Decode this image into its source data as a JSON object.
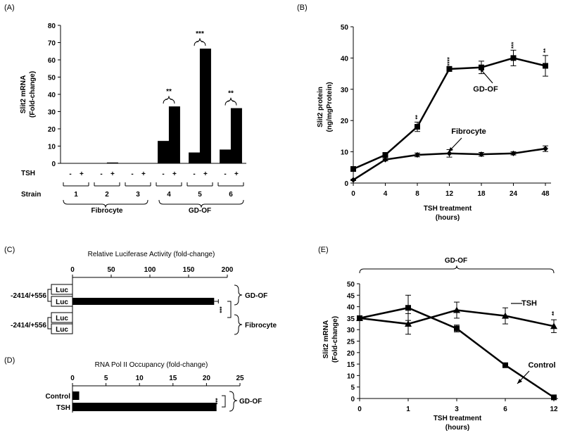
{
  "chart_data": [
    {
      "panel": "(A)",
      "type": "bar",
      "ylabel_line1": "Slit2 mRNA",
      "ylabel_line2": "(Fold-change)",
      "ylim": [
        0,
        80
      ],
      "yticks": [
        "0",
        "10",
        "20",
        "30",
        "40",
        "50",
        "60",
        "70",
        "80"
      ],
      "row_labels": {
        "tsh": "TSH",
        "strain": "Strain"
      },
      "signs": [
        "-",
        "+"
      ],
      "strains": [
        "1",
        "2",
        "3",
        "4",
        "5",
        "6"
      ],
      "values_minus": [
        0,
        0,
        0,
        13,
        6.3,
        8
      ],
      "values_plus": [
        0,
        0.5,
        0,
        33,
        66.5,
        32
      ],
      "significance": [
        {
          "strain": "4",
          "text": "**"
        },
        {
          "strain": "5",
          "text": "***"
        },
        {
          "strain": "6",
          "text": "**"
        }
      ],
      "groups": [
        "Fibrocyte",
        "GD-OF"
      ]
    },
    {
      "panel": "(B)",
      "type": "line",
      "ylabel_line1": "Slit2 protein",
      "ylabel_line2": "(ng/mgProtein)",
      "xlabel_line1": "TSH treatment",
      "xlabel_line2": "(hours)",
      "x": [
        "0",
        "4",
        "8",
        "12",
        "18",
        "24",
        "48"
      ],
      "ylim": [
        0,
        50
      ],
      "yticks": [
        "0",
        "10",
        "20",
        "30",
        "40",
        "50"
      ],
      "series": [
        {
          "name": "GD-OF",
          "marker": "square",
          "values": [
            4.5,
            9,
            18,
            36.5,
            37,
            40,
            37.5
          ],
          "errors": [
            0.3,
            0.5,
            1.5,
            0.8,
            2.0,
            2.5,
            3.3
          ]
        },
        {
          "name": "Fibrocyte",
          "marker": "diamond",
          "values": [
            1,
            7.5,
            9,
            9.5,
            9.2,
            9.5,
            11
          ],
          "errors": [
            0.2,
            0.4,
            0.6,
            1.2,
            0.6,
            0.5,
            0.9
          ]
        }
      ],
      "significance": [
        {
          "x": "8",
          "text": "**"
        },
        {
          "x": "12",
          "text": "****"
        },
        {
          "x": "24",
          "text": "***"
        },
        {
          "x": "48",
          "text": "**"
        }
      ]
    },
    {
      "panel": "(C)",
      "type": "bar",
      "orientation": "horizontal",
      "title": "Relative Luciferase Activity (fold-change)",
      "xlim": [
        0,
        200
      ],
      "xticks": [
        "0",
        "50",
        "100",
        "150",
        "200"
      ],
      "construct": "-2414/+556",
      "rows": [
        {
          "label": "Luc",
          "value": 0
        },
        {
          "label": "Luc",
          "value": 183
        },
        {
          "label": "Luc",
          "value": 0
        },
        {
          "label": "Luc",
          "value": 0
        }
      ],
      "groups": [
        "GD-OF",
        "Fibrocyte"
      ],
      "significance": "***"
    },
    {
      "panel": "(D)",
      "type": "bar",
      "orientation": "horizontal",
      "title": "RNA Pol II Occupancy (fold-change)",
      "xlim": [
        0,
        25
      ],
      "xticks": [
        "0",
        "5",
        "10",
        "15",
        "20",
        "25"
      ],
      "categories": [
        "Control",
        "TSH"
      ],
      "values": [
        1,
        21.5
      ],
      "group": "GD-OF",
      "significance": "***"
    },
    {
      "panel": "(E)",
      "type": "line",
      "title": "GD-OF",
      "ylabel_line1": "Slit2 mRNA",
      "ylabel_line2": "(Fold-change)",
      "xlabel_line1": "TSH treatment",
      "xlabel_line2": "(hours)",
      "x": [
        "0",
        "1",
        "3",
        "6",
        "12"
      ],
      "ylim": [
        0,
        50
      ],
      "yticks": [
        "0",
        "5",
        "10",
        "15",
        "20",
        "25",
        "30",
        "35",
        "40",
        "45",
        "50"
      ],
      "series": [
        {
          "name": "TSH",
          "marker": "triangle",
          "values": [
            35,
            32.5,
            38.5,
            36,
            31.5
          ],
          "errors": [
            0.5,
            4.5,
            3.5,
            3.5,
            2.8
          ]
        },
        {
          "name": "Control",
          "marker": "square",
          "values": [
            35,
            39.5,
            30.5,
            14.5,
            0.5
          ],
          "errors": [
            0.5,
            5.5,
            1.5,
            0.5,
            0.3
          ]
        }
      ],
      "significance": [
        {
          "x": "12",
          "text": "**"
        }
      ]
    }
  ]
}
